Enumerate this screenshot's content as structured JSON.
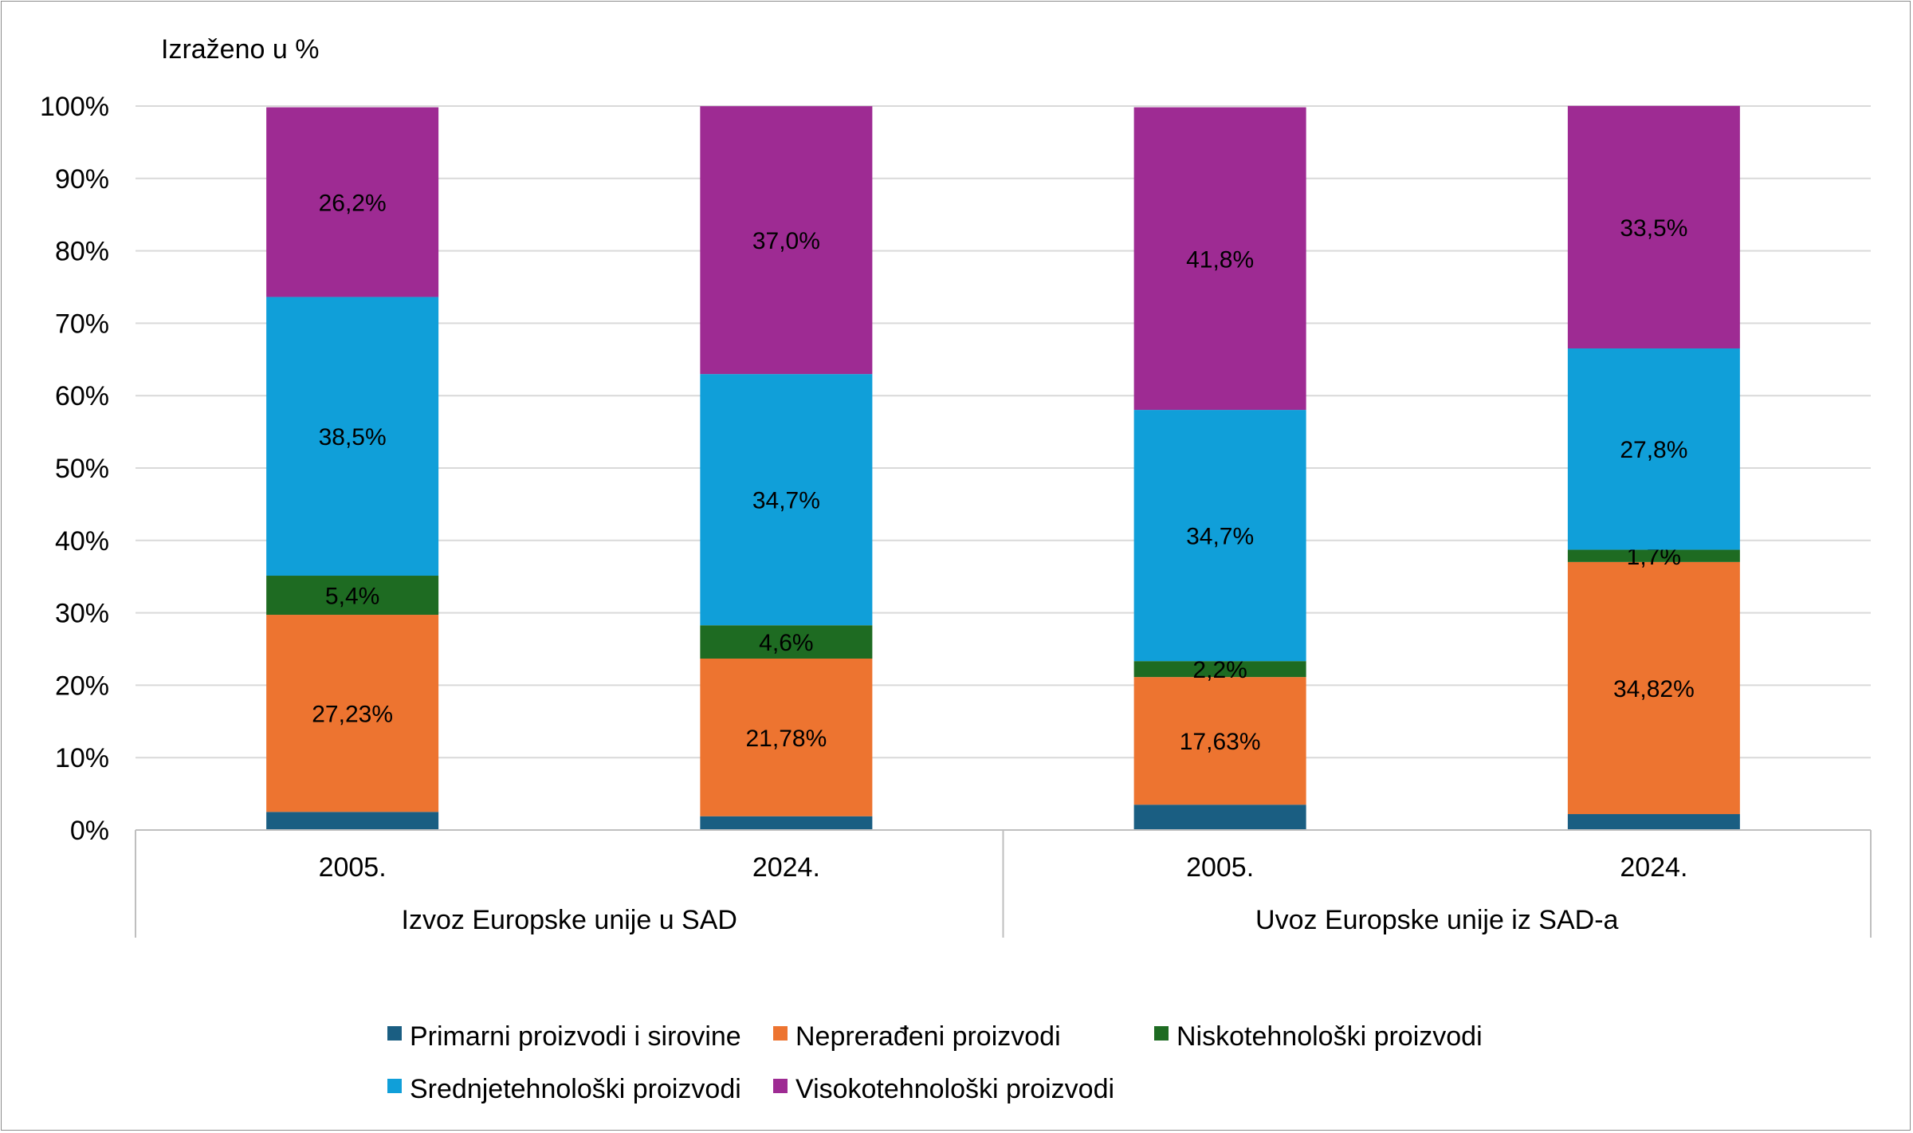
{
  "chart_data": {
    "type": "bar",
    "stacked": true,
    "unit_label": "Izraženo u %",
    "ylim": [
      0,
      100
    ],
    "y_ticks": [
      "0%",
      "10%",
      "20%",
      "30%",
      "40%",
      "50%",
      "60%",
      "70%",
      "80%",
      "90%",
      "100%"
    ],
    "grid": true,
    "legend_position": "bottom",
    "groups": [
      {
        "label": "Izvoz Europske unije u SAD",
        "categories": [
          "2005.",
          "2024."
        ]
      },
      {
        "label": "Uvoz Europske unije iz SAD-a",
        "categories": [
          "2005.",
          "2024."
        ]
      }
    ],
    "categories": [
      "2005.",
      "2024.",
      "2005.",
      "2024."
    ],
    "series": [
      {
        "name": "Primarni proizvodi i sirovine",
        "color": "#1a5e82",
        "values": [
          2.5,
          1.9,
          3.5,
          2.2
        ],
        "labels": [
          "",
          "",
          "",
          ""
        ]
      },
      {
        "name": "Neprerađeni proizvodi",
        "color": "#ed7430",
        "values": [
          27.23,
          21.78,
          17.63,
          34.82
        ],
        "labels": [
          "27,23%",
          "21,78%",
          "17,63%",
          "34,82%"
        ]
      },
      {
        "name": "Niskotehnološki proizvodi",
        "color": "#1e6b22",
        "values": [
          5.4,
          4.6,
          2.2,
          1.7
        ],
        "labels": [
          "5,4%",
          "4,6%",
          "2,2%",
          "1,7%"
        ]
      },
      {
        "name": "Srednjetehnološki proizvodi",
        "color": "#109fd9",
        "values": [
          38.5,
          34.7,
          34.7,
          27.8
        ],
        "labels": [
          "38,5%",
          "34,7%",
          "34,7%",
          "27,8%"
        ]
      },
      {
        "name": "Visokotehnološki proizvodi",
        "color": "#9e2b93",
        "values": [
          26.2,
          37.0,
          41.8,
          33.5
        ],
        "labels": [
          "26,2%",
          "37,0%",
          "41,8%",
          "33,5%"
        ]
      }
    ]
  }
}
